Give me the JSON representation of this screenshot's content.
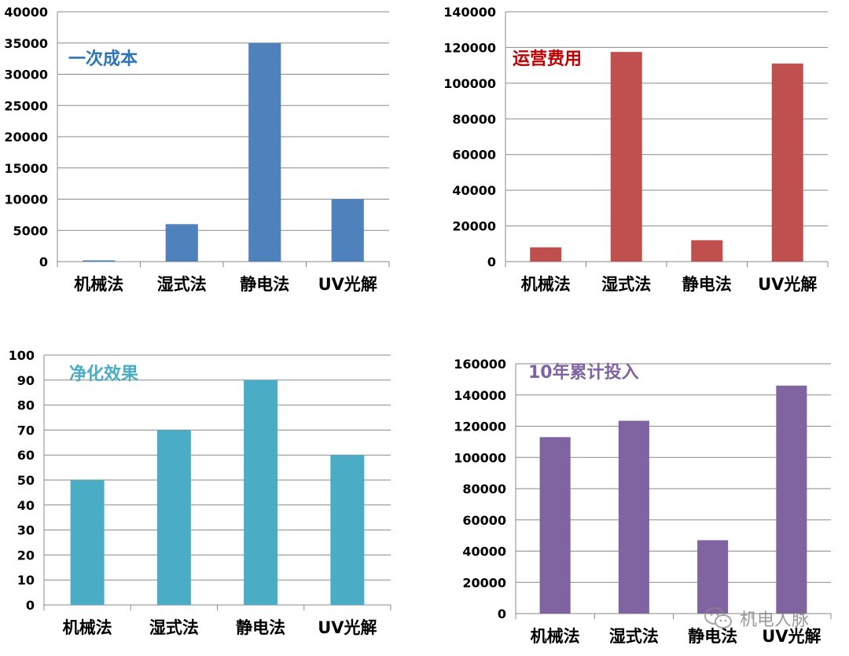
{
  "chart_data": [
    {
      "type": "bar",
      "title": "一次成本",
      "title_color": "#2E75B6",
      "bar_color": "#4F81BD",
      "categories": [
        "机械法",
        "湿式法",
        "静电法",
        "UV光解"
      ],
      "values": [
        200,
        6000,
        35000,
        10000
      ],
      "ylim": [
        0,
        40000
      ],
      "yticks": [
        "0",
        "5000",
        "10000",
        "15000",
        "20000",
        "25000",
        "30000",
        "35000",
        "40000"
      ],
      "grid": true
    },
    {
      "type": "bar",
      "title": "运营费用",
      "title_color": "#C00000",
      "bar_color": "#C0504D",
      "categories": [
        "机械法",
        "湿式法",
        "静电法",
        "UV光解"
      ],
      "values": [
        8000,
        117500,
        12000,
        111000
      ],
      "ylim": [
        0,
        140000
      ],
      "yticks": [
        "0",
        "20000",
        "40000",
        "60000",
        "80000",
        "100000",
        "120000",
        "140000"
      ],
      "grid": true
    },
    {
      "type": "bar",
      "title": "净化效果",
      "title_color": "#4BACC6",
      "bar_color": "#4BACC6",
      "categories": [
        "机械法",
        "湿式法",
        "静电法",
        "UV光解"
      ],
      "values": [
        50,
        70,
        90,
        60
      ],
      "ylim": [
        0,
        100
      ],
      "yticks": [
        "0",
        "10",
        "20",
        "30",
        "40",
        "50",
        "60",
        "70",
        "80",
        "90",
        "100"
      ],
      "grid": true
    },
    {
      "type": "bar",
      "title": "10年累计投入",
      "title_color": "#8064A2",
      "bar_color": "#8064A2",
      "categories": [
        "机械法",
        "湿式法",
        "静电法",
        "UV光解"
      ],
      "values": [
        113000,
        123500,
        47000,
        146000
      ],
      "ylim": [
        0,
        160000
      ],
      "yticks": [
        "0",
        "20000",
        "40000",
        "60000",
        "80000",
        "100000",
        "120000",
        "140000",
        "160000"
      ],
      "grid": true
    }
  ],
  "watermark": {
    "text": "机电人脉",
    "icon": "wechat-icon"
  }
}
